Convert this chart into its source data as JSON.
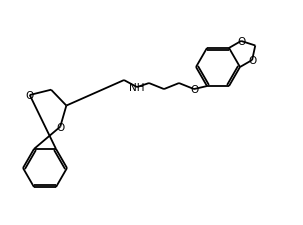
{
  "background": "#ffffff",
  "line_color": "#000000",
  "line_width": 1.3,
  "font_size": 7.5,
  "figsize": [
    3.03,
    2.26
  ],
  "dpi": 100,
  "xlim": [
    0,
    303
  ],
  "ylim": [
    0,
    226
  ]
}
